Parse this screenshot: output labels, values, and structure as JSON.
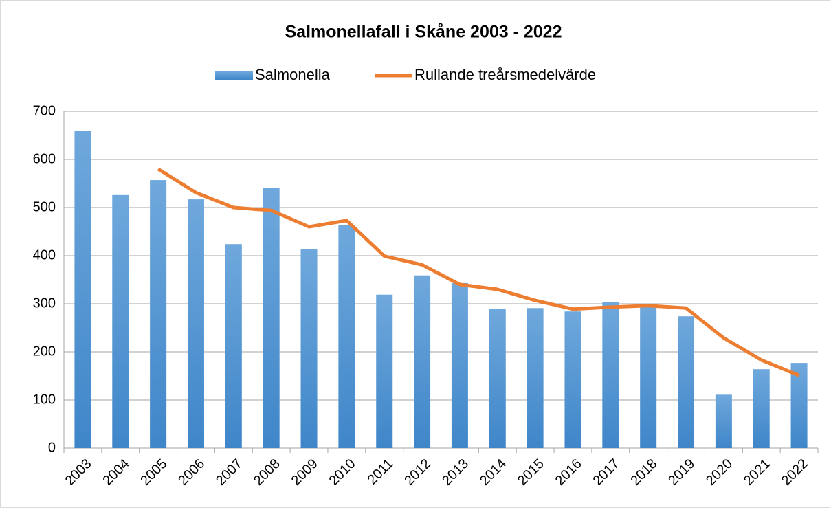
{
  "chart_data": {
    "type": "combo",
    "title": "Salmonellafall i Skåne 2003 - 2022",
    "categories": [
      "2003",
      "2004",
      "2005",
      "2006",
      "2007",
      "2008",
      "2009",
      "2010",
      "2011",
      "2012",
      "2013",
      "2014",
      "2015",
      "2016",
      "2017",
      "2018",
      "2019",
      "2020",
      "2021",
      "2022"
    ],
    "series": [
      {
        "name": "Salmonella",
        "type": "bar",
        "color": "#5b9bd5",
        "values": [
          660,
          526,
          557,
          517,
          424,
          541,
          414,
          464,
          319,
          359,
          343,
          290,
          291,
          284,
          303,
          296,
          274,
          111,
          164,
          177
        ]
      },
      {
        "name": "Rullande treårsmedelvärde",
        "type": "line",
        "color": "#ed7d31",
        "values": [
          null,
          null,
          580,
          531,
          500,
          494,
          460,
          473,
          399,
          381,
          340,
          330,
          307,
          289,
          293,
          296,
          291,
          229,
          183,
          151
        ]
      }
    ],
    "ylim": [
      0,
      700
    ],
    "yticks": [
      0,
      100,
      200,
      300,
      400,
      500,
      600,
      700
    ],
    "grid": true,
    "legend": "top"
  }
}
